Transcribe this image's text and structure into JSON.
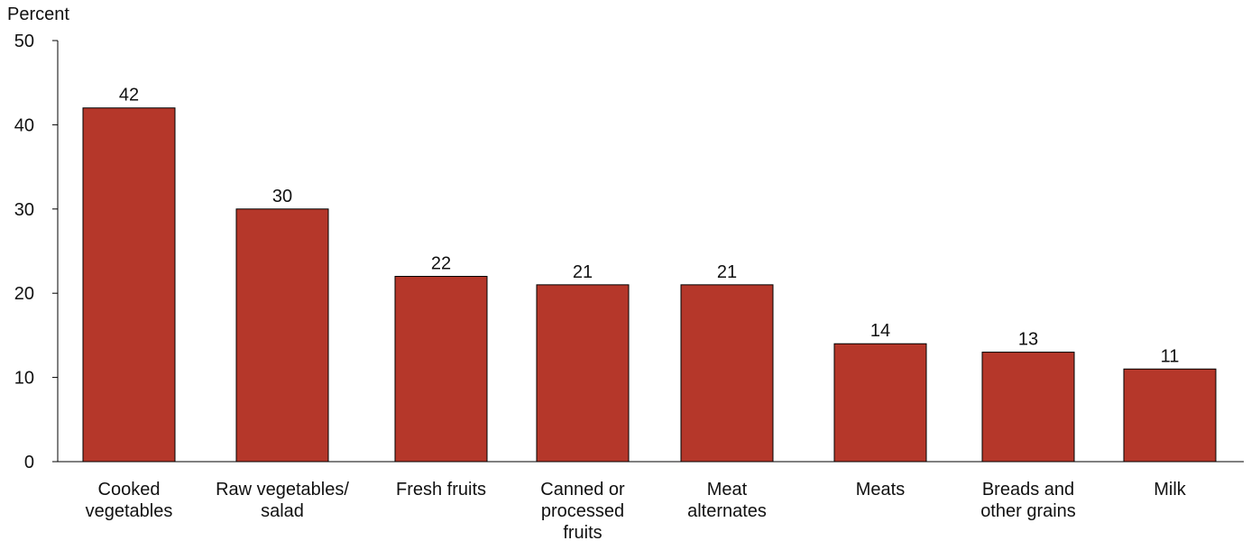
{
  "chart_data": {
    "type": "bar",
    "ylabel": "Percent",
    "ylim": [
      0,
      50
    ],
    "yticks": [
      0,
      10,
      20,
      30,
      40,
      50
    ],
    "categories": [
      [
        "Cooked",
        "vegetables"
      ],
      [
        "Raw vegetables/",
        "salad"
      ],
      [
        "Fresh fruits"
      ],
      [
        "Canned or",
        "processed",
        "fruits"
      ],
      [
        "Meat",
        "alternates"
      ],
      [
        "Meats"
      ],
      [
        "Breads and",
        "other grains"
      ],
      [
        "Milk"
      ]
    ],
    "values": [
      42,
      30,
      22,
      21,
      21,
      14,
      13,
      11
    ],
    "bar_color": "#b5372a",
    "grid": false
  }
}
